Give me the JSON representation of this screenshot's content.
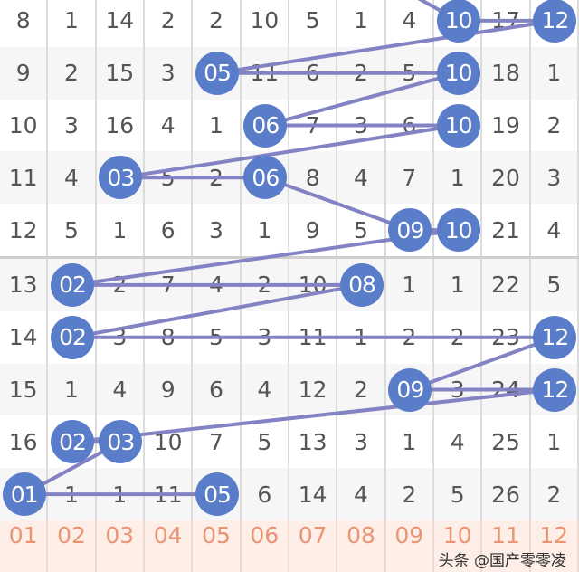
{
  "chart_data": {
    "type": "table",
    "columns": [
      "01",
      "02",
      "03",
      "04",
      "05",
      "06",
      "07",
      "08",
      "09",
      "10",
      "11",
      "12"
    ],
    "rows": [
      {
        "cells": [
          "8",
          "1",
          "14",
          "2",
          "2",
          "10",
          "5",
          "1",
          "4",
          "10",
          "17",
          "12"
        ],
        "hits": [
          10,
          12
        ]
      },
      {
        "cells": [
          "9",
          "2",
          "15",
          "3",
          "05",
          "11",
          "6",
          "2",
          "5",
          "10",
          "18",
          "1"
        ],
        "hits": [
          5,
          10
        ]
      },
      {
        "cells": [
          "10",
          "3",
          "16",
          "4",
          "1",
          "06",
          "7",
          "3",
          "6",
          "10",
          "19",
          "2"
        ],
        "hits": [
          6,
          10
        ]
      },
      {
        "cells": [
          "11",
          "4",
          "03",
          "5",
          "2",
          "06",
          "8",
          "4",
          "7",
          "1",
          "20",
          "3"
        ],
        "hits": [
          3,
          6
        ]
      },
      {
        "cells": [
          "12",
          "5",
          "1",
          "6",
          "3",
          "1",
          "9",
          "5",
          "09",
          "10",
          "21",
          "4"
        ],
        "hits": [
          9,
          10
        ]
      },
      {
        "cells": [
          "13",
          "02",
          "2",
          "7",
          "4",
          "2",
          "10",
          "08",
          "1",
          "1",
          "22",
          "5"
        ],
        "hits": [
          2,
          8
        ]
      },
      {
        "cells": [
          "14",
          "02",
          "3",
          "8",
          "5",
          "3",
          "11",
          "1",
          "2",
          "2",
          "23",
          "12"
        ],
        "hits": [
          2,
          12
        ]
      },
      {
        "cells": [
          "15",
          "1",
          "4",
          "9",
          "6",
          "4",
          "12",
          "2",
          "09",
          "3",
          "24",
          "12"
        ],
        "hits": [
          9,
          12
        ]
      },
      {
        "cells": [
          "16",
          "02",
          "03",
          "10",
          "7",
          "5",
          "13",
          "3",
          "1",
          "4",
          "25",
          "1"
        ],
        "hits": [
          2,
          3
        ]
      },
      {
        "cells": [
          "01",
          "1",
          "1",
          "11",
          "05",
          "6",
          "14",
          "4",
          "2",
          "5",
          "26",
          "2"
        ],
        "hits": [
          1,
          5
        ]
      }
    ],
    "ball_color": "#5a7dc9",
    "line_color": "#8383c4",
    "footer_color": "#e99575"
  },
  "watermark": "头条 @国产零零凌"
}
